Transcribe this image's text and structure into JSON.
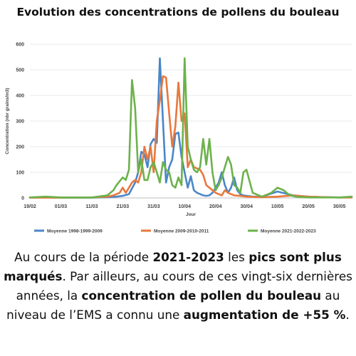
{
  "chart_data": {
    "type": "line",
    "title": "Evolution des concentrations de pollens du bouleau",
    "xlabel": "Jour",
    "ylabel": "Concentration (nbr grains/m3)",
    "ylim": [
      0,
      600
    ],
    "y_ticks": [
      0,
      100,
      200,
      300,
      400,
      500,
      600
    ],
    "x_range_days": [
      0,
      104
    ],
    "x_ticks": [
      {
        "day": 0,
        "label": "19/02"
      },
      {
        "day": 10,
        "label": "01/03"
      },
      {
        "day": 20,
        "label": "11/03"
      },
      {
        "day": 30,
        "label": "21/03"
      },
      {
        "day": 40,
        "label": "31/03"
      },
      {
        "day": 50,
        "label": "10/04"
      },
      {
        "day": 60,
        "label": "20/04"
      },
      {
        "day": 70,
        "label": "30/04"
      },
      {
        "day": 80,
        "label": "10/05"
      },
      {
        "day": 90,
        "label": "20/05"
      },
      {
        "day": 100,
        "label": "30/05"
      }
    ],
    "grid": "horizontal",
    "legend": "bottom",
    "series": [
      {
        "name": "Moyenne 1998-1999-2009",
        "color": "#4a86c8",
        "x": [
          0,
          5,
          10,
          20,
          25,
          28,
          30,
          32,
          34,
          35,
          36,
          37,
          38,
          39,
          40,
          41,
          42,
          43,
          44,
          45,
          46,
          47,
          48,
          49,
          50,
          51,
          52,
          53,
          54,
          55,
          56,
          57,
          58,
          59,
          60,
          61,
          62,
          63,
          64,
          65,
          66,
          67,
          68,
          69,
          70,
          72,
          75,
          80,
          85,
          90,
          95,
          100,
          104
        ],
        "values": [
          2,
          2,
          1,
          1,
          3,
          5,
          8,
          15,
          60,
          100,
          180,
          170,
          120,
          210,
          230,
          215,
          545,
          300,
          60,
          120,
          150,
          250,
          255,
          160,
          100,
          40,
          85,
          30,
          20,
          15,
          10,
          8,
          10,
          20,
          40,
          60,
          100,
          50,
          20,
          40,
          80,
          30,
          15,
          10,
          8,
          5,
          5,
          25,
          10,
          5,
          3,
          2,
          2
        ]
      },
      {
        "name": "Moyenne 2009-2010-2011",
        "color": "#e8783c",
        "x": [
          0,
          5,
          10,
          20,
          25,
          27,
          29,
          30,
          31,
          32,
          33,
          34,
          35,
          36,
          37,
          38,
          39,
          40,
          41,
          42,
          43,
          44,
          45,
          46,
          47,
          48,
          49,
          50,
          51,
          52,
          53,
          54,
          55,
          56,
          57,
          58,
          59,
          60,
          61,
          62,
          63,
          64,
          65,
          66,
          68,
          70,
          75,
          80,
          85,
          90,
          95,
          100,
          104
        ],
        "values": [
          1,
          1,
          1,
          2,
          5,
          10,
          20,
          40,
          20,
          40,
          60,
          70,
          60,
          100,
          200,
          150,
          200,
          100,
          300,
          380,
          475,
          470,
          330,
          200,
          280,
          450,
          300,
          330,
          120,
          150,
          120,
          115,
          110,
          90,
          50,
          40,
          30,
          20,
          15,
          10,
          30,
          20,
          15,
          10,
          8,
          5,
          3,
          5,
          10,
          5,
          3,
          2,
          2
        ]
      },
      {
        "name": "Moyenne 2021-2022-2023",
        "color": "#6bb24b",
        "x": [
          0,
          5,
          10,
          20,
          25,
          27,
          28,
          30,
          31,
          32,
          33,
          34,
          35,
          36,
          37,
          38,
          39,
          40,
          41,
          42,
          43,
          44,
          45,
          46,
          47,
          48,
          49,
          50,
          51,
          52,
          53,
          54,
          55,
          56,
          57,
          58,
          59,
          60,
          61,
          62,
          63,
          64,
          65,
          66,
          67,
          68,
          69,
          70,
          72,
          75,
          78,
          80,
          82,
          84,
          86,
          88,
          90,
          95,
          100,
          104
        ],
        "values": [
          2,
          5,
          2,
          2,
          10,
          30,
          50,
          80,
          70,
          110,
          460,
          350,
          100,
          150,
          70,
          70,
          120,
          140,
          100,
          60,
          140,
          110,
          100,
          50,
          40,
          80,
          50,
          545,
          200,
          150,
          110,
          100,
          120,
          230,
          130,
          230,
          100,
          30,
          50,
          80,
          120,
          160,
          130,
          50,
          40,
          20,
          100,
          110,
          20,
          5,
          20,
          40,
          30,
          10,
          5,
          3,
          2,
          2,
          2,
          5
        ]
      }
    ]
  },
  "caption": {
    "p1": "Au cours de la période ",
    "b1": "2021-2023",
    "p2": " les ",
    "b2": "pics sont plus marqués",
    "p3": ". Par ailleurs, au cours de ces vingt-six dernières années, la ",
    "b3": "concentration de pollen du bouleau",
    "p4": " au niveau de l’EMS a connu une ",
    "b4": "augmentation de +55 %",
    "p5": "."
  }
}
